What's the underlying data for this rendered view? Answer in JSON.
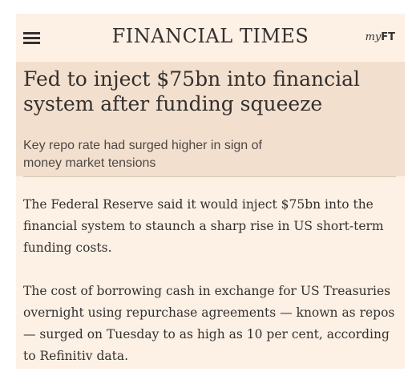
{
  "header": {
    "brand": "FINANCIAL TIMES",
    "myft_prefix": "my",
    "myft_suffix": "FT",
    "menu_icon": "hamburger-menu-icon"
  },
  "article": {
    "headline": "Fed to inject $75bn into financial system after funding squeeze",
    "standfirst": "Key repo rate had surged higher in sign of money market tensions",
    "paragraphs": [
      "The Federal Reserve said it would inject $75bn into the financial system to staunch a sharp rise in US short-term funding costs.",
      "The cost of borrowing cash in exchange for US Treasuries overnight using repurchase agreements — known as repos — surged on Tuesday to as high as 10 per cent, according to Refinitiv data."
    ]
  },
  "colors": {
    "page_background": "#fdf1e6",
    "hero_background": "#f2dfce",
    "text": "#33302e"
  }
}
